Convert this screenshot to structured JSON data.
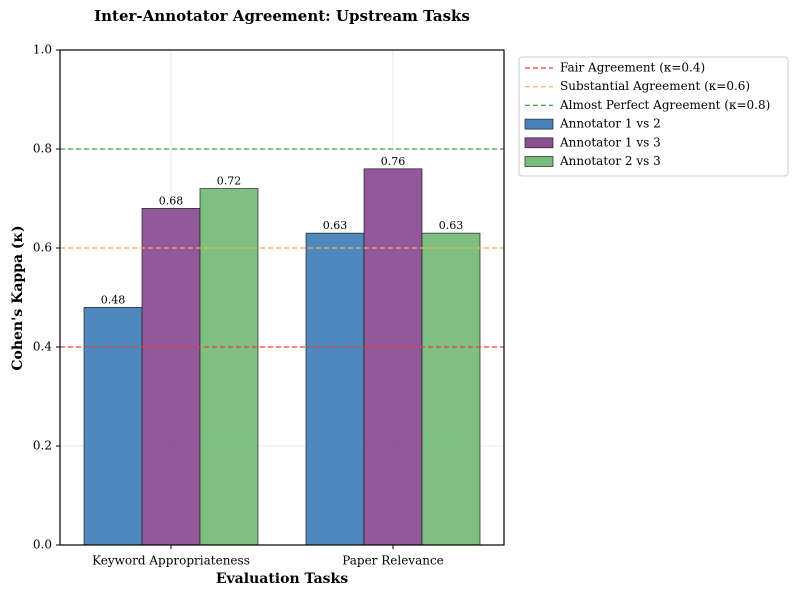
{
  "chart_data": {
    "type": "bar",
    "title": "Inter-Annotator Agreement: Upstream Tasks",
    "x_label": "Evaluation Tasks",
    "y_label": "Cohen's Kappa (κ)",
    "categories": [
      "Keyword Appropriateness",
      "Paper Relevance"
    ],
    "series": [
      {
        "name": "Annotator 1 vs 2",
        "color": "#4682b9",
        "values": [
          0.48,
          0.63
        ]
      },
      {
        "name": "Annotator 1 vs 3",
        "color": "#8b4f95",
        "values": [
          0.68,
          0.76
        ]
      },
      {
        "name": "Annotator 2 vs 3",
        "color": "#78bd7b",
        "values": [
          0.72,
          0.63
        ]
      }
    ],
    "reference_lines": [
      {
        "name": "Fair Agreement (κ=0.4)",
        "value": 0.4,
        "color": "#e8403a"
      },
      {
        "name": "Substantial Agreement (κ=0.6)",
        "value": 0.6,
        "color": "#f4ae4c"
      },
      {
        "name": "Almost Perfect Agreement (κ=0.8)",
        "value": 0.8,
        "color": "#3aa63a"
      }
    ],
    "ylim": [
      0,
      1
    ],
    "yticks": [
      {
        "value": 0,
        "label": "0.0"
      },
      0.2,
      0.4,
      0.6,
      0.8,
      {
        "value": 1,
        "label": "1.0"
      }
    ],
    "grid": true,
    "legend": "outside-right"
  }
}
